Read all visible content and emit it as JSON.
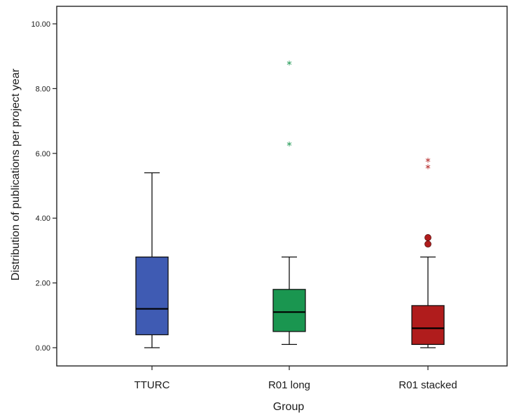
{
  "chart_data": {
    "type": "boxplot",
    "xlabel": "Group",
    "ylabel": "Distribution of publications per project year",
    "ylim": [
      -0.5,
      10.6
    ],
    "yticks": [
      "0.00",
      "2.00",
      "4.00",
      "6.00",
      "8.00",
      "10.00"
    ],
    "grid": false,
    "categories": [
      "TTURC",
      "R01 long",
      "R01 stacked"
    ],
    "boxes": [
      {
        "category": "TTURC",
        "color": "#3F5BB3",
        "min": 0.0,
        "q1": 0.4,
        "median": 1.2,
        "q3": 2.8,
        "max": 5.4,
        "outliers": [],
        "extremes": []
      },
      {
        "category": "R01 long",
        "color": "#1A9650",
        "min": 0.1,
        "q1": 0.5,
        "median": 1.1,
        "q3": 1.8,
        "max": 2.8,
        "outliers": [],
        "extremes": [
          6.3,
          8.8
        ]
      },
      {
        "category": "R01 stacked",
        "color": "#B01C1C",
        "min": 0.0,
        "q1": 0.1,
        "median": 0.6,
        "q3": 1.3,
        "max": 2.8,
        "outliers": [
          3.2,
          3.4
        ],
        "extremes": [
          5.6,
          5.8
        ]
      }
    ]
  }
}
